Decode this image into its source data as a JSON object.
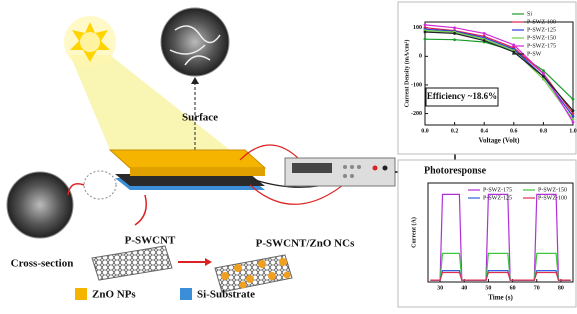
{
  "labels": {
    "surface": "Surface",
    "cross_section": "Cross-section",
    "p_swcnt": "P-SWCNT",
    "composite": "P-SWCNT/ZnO NCs"
  },
  "legend": [
    {
      "label": "ZnO NPs",
      "color": "#f5b400"
    },
    {
      "label": "Si-Substrate",
      "color": "#3b8fd8"
    }
  ],
  "charts": [
    {
      "type": "line",
      "annotation": "Efficiency ~18.6%",
      "x_label": "Voltage (Volt)",
      "y_label": "Current Density (mA/cm²)",
      "x": [
        0,
        0.2,
        0.4,
        0.6,
        0.8,
        1.0
      ],
      "xlim": [
        0,
        1
      ],
      "xticks": [
        {
          "value": 0,
          "label": "0.0"
        },
        {
          "value": 0.2,
          "label": "0.2"
        },
        {
          "value": 0.4,
          "label": "0.4"
        },
        {
          "value": 0.6,
          "label": "0.6"
        },
        {
          "value": 0.8,
          "label": "0.8"
        },
        {
          "value": 1.0,
          "label": "1.0"
        }
      ],
      "ylim": [
        -240,
        120
      ],
      "yticks": [
        100,
        0,
        -100,
        -200
      ],
      "series": [
        {
          "name": "Si",
          "color": "#1a9c2a",
          "values": [
            60,
            58,
            50,
            20,
            -50,
            -150
          ]
        },
        {
          "name": "P-SWZ-100",
          "color": "#e0204a",
          "values": [
            100,
            90,
            70,
            30,
            -60,
            -200
          ]
        },
        {
          "name": "P-SWZ-125",
          "color": "#2f3fd8",
          "values": [
            95,
            88,
            65,
            25,
            -70,
            -210
          ]
        },
        {
          "name": "P-SWZ-150",
          "color": "#6fd04a",
          "values": [
            90,
            85,
            60,
            20,
            -80,
            -220
          ]
        },
        {
          "name": "P-SWZ-175",
          "color": "#d02ad8",
          "values": [
            110,
            100,
            80,
            40,
            -60,
            -230
          ]
        },
        {
          "name": "P-SW",
          "color": "#222222",
          "values": [
            85,
            80,
            55,
            15,
            -70,
            -190
          ]
        }
      ]
    },
    {
      "type": "line",
      "title": "Photoresponse",
      "x_label": "Time (s)",
      "y_label": "Current (A)",
      "x": [
        26,
        30,
        31,
        38,
        39,
        49,
        50,
        58,
        59,
        69,
        70,
        78,
        79,
        84
      ],
      "xlim": [
        25,
        85
      ],
      "xticks": [
        30,
        40,
        50,
        60,
        70,
        80
      ],
      "ylim": [
        0,
        5.2
      ],
      "series": [
        {
          "name": "P-SWZ-175",
          "color": "#b030d8",
          "values": [
            0.1,
            0.1,
            4.6,
            4.6,
            0.1,
            0.1,
            4.6,
            4.6,
            0.1,
            0.1,
            4.6,
            4.6,
            0.1,
            0.1
          ]
        },
        {
          "name": "P-SWZ-150",
          "color": "#3cc83c",
          "values": [
            0.1,
            0.1,
            1.5,
            1.5,
            0.1,
            0.1,
            1.5,
            1.5,
            0.1,
            0.1,
            1.5,
            1.5,
            0.1,
            0.1
          ]
        },
        {
          "name": "P-SWZ-125",
          "color": "#3060e0",
          "values": [
            0.1,
            0.1,
            0.6,
            0.6,
            0.1,
            0.1,
            0.6,
            0.6,
            0.1,
            0.1,
            0.6,
            0.6,
            0.1,
            0.1
          ]
        },
        {
          "name": "P-SWZ-100",
          "color": "#e03050",
          "values": [
            0.1,
            0.1,
            0.5,
            0.5,
            0.1,
            0.1,
            0.5,
            0.5,
            0.1,
            0.1,
            0.5,
            0.5,
            0.1,
            0.1
          ]
        }
      ]
    }
  ]
}
